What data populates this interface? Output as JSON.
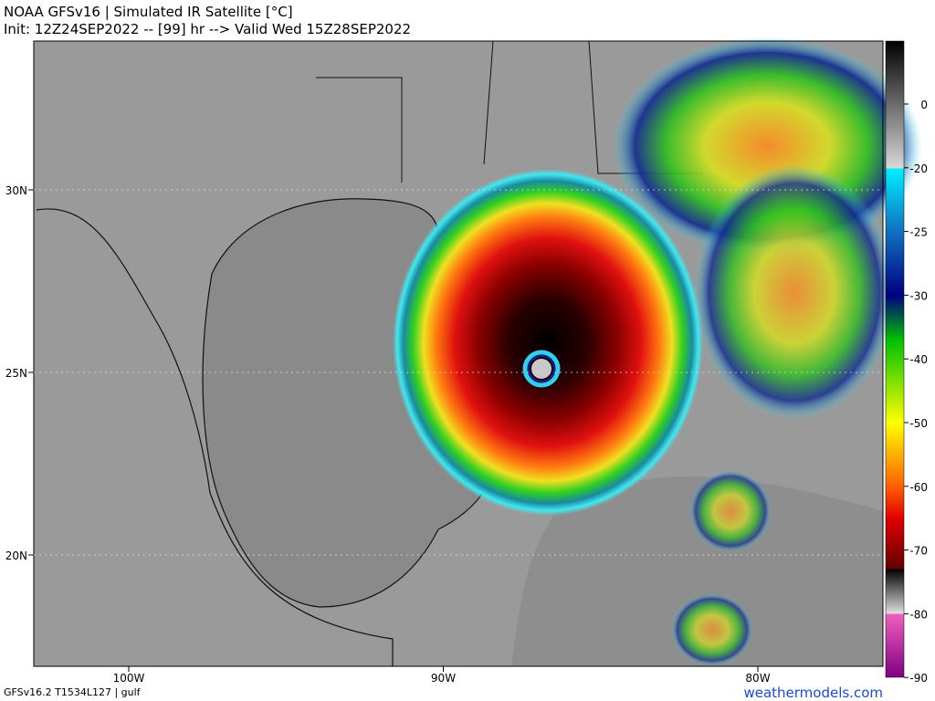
{
  "header": {
    "title": "NOAA GFSv16 | Simulated IR Satellite [°C]",
    "subtitle": "Init: 12Z24SEP2022 -- [99] hr --> Valid Wed 15Z28SEP2022"
  },
  "map": {
    "lat_labels": [
      "30N",
      "25N",
      "20N"
    ],
    "lon_labels": [
      "100W",
      "90W",
      "80W"
    ]
  },
  "colorbar": {
    "ticks": [
      0,
      -20,
      -25,
      -30,
      -40,
      -50,
      -60,
      -70,
      -80,
      -90
    ]
  },
  "footer": {
    "model": "GFSv16.2 T1534L127 | gulf",
    "credit": "weathermodels.com"
  }
}
